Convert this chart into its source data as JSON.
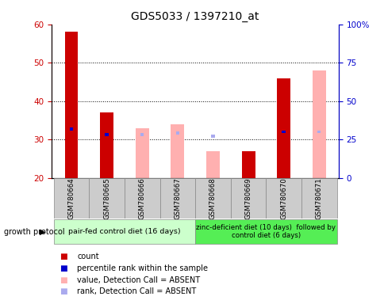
{
  "title": "GDS5033 / 1397210_at",
  "samples": [
    "GSM780664",
    "GSM780665",
    "GSM780666",
    "GSM780667",
    "GSM780668",
    "GSM780669",
    "GSM780670",
    "GSM780671"
  ],
  "count_values": [
    58,
    37,
    null,
    null,
    null,
    27,
    46,
    null
  ],
  "count_color": "#cc0000",
  "rank_values": [
    32,
    28,
    null,
    null,
    null,
    null,
    30,
    null
  ],
  "rank_color": "#0000cc",
  "absent_value_values": [
    null,
    null,
    33,
    34,
    27,
    null,
    null,
    48
  ],
  "absent_value_color": "#ffb0b0",
  "absent_rank_values": [
    null,
    null,
    28,
    29,
    27,
    null,
    null,
    30
  ],
  "absent_rank_color": "#aaaaee",
  "ylim_left": [
    20,
    60
  ],
  "ylim_right": [
    0,
    100
  ],
  "yticks_left": [
    20,
    30,
    40,
    50,
    60
  ],
  "yticks_right": [
    0,
    25,
    50,
    75,
    100
  ],
  "ytick_labels_right": [
    "0",
    "25",
    "50",
    "75",
    "100%"
  ],
  "group1_label": "pair-fed control diet (16 days)",
  "group2_label": "zinc-deficient diet (10 days)  followed by\ncontrol diet (6 days)",
  "group1_color": "#ccffcc",
  "group2_color": "#55ee55",
  "growth_protocol_label": "growth protocol",
  "legend_items": [
    {
      "color": "#cc0000",
      "label": "count"
    },
    {
      "color": "#0000cc",
      "label": "percentile rank within the sample"
    },
    {
      "color": "#ffb0b0",
      "label": "value, Detection Call = ABSENT"
    },
    {
      "color": "#aaaaee",
      "label": "rank, Detection Call = ABSENT"
    }
  ],
  "sample_box_color": "#cccccc",
  "grid_color": "black",
  "background_color": "#ffffff"
}
